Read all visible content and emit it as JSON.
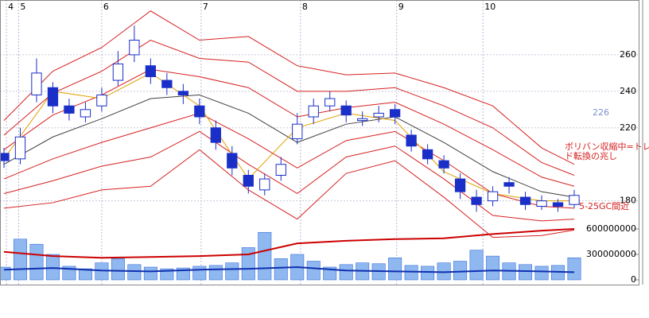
{
  "chart_data": {
    "type": "candlestick",
    "x": [
      0,
      1,
      2,
      3,
      4,
      5,
      6,
      7,
      8,
      9,
      10,
      11,
      12,
      13,
      14,
      15,
      16,
      17,
      18,
      19,
      20,
      21,
      22,
      23,
      24,
      25,
      26,
      27,
      28,
      29,
      30,
      31,
      32,
      33,
      34,
      35
    ],
    "open": [
      206,
      203,
      238,
      242,
      232,
      226,
      232,
      246,
      260,
      254,
      246,
      240,
      232,
      220,
      206,
      194,
      186,
      194,
      214,
      226,
      232,
      232,
      224,
      226,
      230,
      216,
      208,
      202,
      192,
      182,
      180,
      190,
      182,
      177,
      179,
      178
    ],
    "close": [
      202,
      215,
      250,
      232,
      228,
      230,
      238,
      255,
      268,
      248,
      242,
      238,
      226,
      212,
      198,
      188,
      192,
      200,
      222,
      232,
      236,
      227,
      225,
      228,
      226,
      210,
      203,
      198,
      185,
      178,
      185,
      188,
      178,
      180,
      177,
      183
    ],
    "high": [
      209,
      220,
      258,
      245,
      236,
      234,
      242,
      262,
      276,
      258,
      250,
      244,
      236,
      224,
      210,
      197,
      195,
      204,
      228,
      236,
      240,
      235,
      229,
      232,
      233,
      219,
      211,
      205,
      195,
      186,
      188,
      193,
      185,
      183,
      181,
      186
    ],
    "low": [
      198,
      200,
      234,
      228,
      224,
      223,
      229,
      243,
      256,
      244,
      238,
      233,
      222,
      208,
      194,
      184,
      183,
      191,
      211,
      222,
      229,
      223,
      221,
      223,
      222,
      207,
      200,
      195,
      181,
      174,
      177,
      184,
      175,
      175,
      174,
      176
    ],
    "up_color": "#ffffff",
    "down_color": "#1a2fc8",
    "xlim": [
      0,
      35
    ],
    "xticks": [
      {
        "value": 0.15,
        "label": "4"
      },
      {
        "value": 0.9,
        "label": "5"
      },
      {
        "value": 6,
        "label": "6"
      },
      {
        "value": 12.1,
        "label": "7"
      },
      {
        "value": 18.2,
        "label": "8"
      },
      {
        "value": 24.1,
        "label": "9"
      },
      {
        "value": 29.4,
        "label": "10"
      }
    ],
    "ylim": [
      135,
      290
    ],
    "yticks": [
      180,
      220,
      240,
      260
    ],
    "grid": true,
    "lines": {
      "x": [
        0,
        3,
        6,
        9,
        12,
        15,
        18,
        21,
        24,
        27,
        30,
        33,
        35
      ],
      "series": [
        {
          "color": "#404040",
          "values": [
            200,
            215,
            225,
            236,
            238,
            228,
            212,
            222,
            226,
            212,
            196,
            185,
            182
          ]
        },
        {
          "color": "#d62020",
          "values": [
            208,
            227,
            238,
            252,
            248,
            242,
            226,
            231,
            234,
            222,
            208,
            193,
            188
          ]
        },
        {
          "color": "#d62020",
          "values": [
            216,
            239,
            251,
            268,
            258,
            256,
            240,
            240,
            242,
            232,
            220,
            201,
            194
          ]
        },
        {
          "color": "#d62020",
          "values": [
            224,
            251,
            264,
            284,
            268,
            270,
            254,
            249,
            250,
            242,
            232,
            209,
            200
          ]
        },
        {
          "color": "#d62020",
          "values": [
            192,
            203,
            212,
            220,
            228,
            214,
            198,
            213,
            218,
            202,
            184,
            177,
            176
          ]
        },
        {
          "color": "#d62020",
          "values": [
            184,
            191,
            199,
            204,
            218,
            200,
            184,
            204,
            210,
            192,
            172,
            169,
            170
          ]
        },
        {
          "color": "#d62020",
          "values": [
            176,
            179,
            186,
            188,
            208,
            186,
            170,
            195,
            202,
            182,
            160,
            161,
            164
          ]
        },
        {
          "color": "#e0a000",
          "values": [
            203,
            240,
            236,
            250,
            232,
            192,
            220,
            228,
            224,
            196,
            184,
            180,
            180
          ]
        }
      ]
    },
    "volume": {
      "color": "#8fb8f0",
      "values": [
        150000000,
        480000000,
        420000000,
        300000000,
        160000000,
        130000000,
        200000000,
        250000000,
        180000000,
        150000000,
        130000000,
        140000000,
        160000000,
        170000000,
        200000000,
        380000000,
        560000000,
        250000000,
        300000000,
        220000000,
        150000000,
        180000000,
        200000000,
        190000000,
        260000000,
        170000000,
        160000000,
        200000000,
        220000000,
        350000000,
        280000000,
        200000000,
        180000000,
        160000000,
        170000000,
        260000000
      ],
      "ylim": [
        0,
        3300000000
      ],
      "yticks": [
        0,
        300000000,
        600000000
      ],
      "lines": [
        {
          "color": "#cc0000",
          "values": [
            330000000,
            280000000,
            260000000,
            270000000,
            280000000,
            300000000,
            430000000,
            460000000,
            480000000,
            490000000,
            540000000,
            580000000,
            600000000
          ]
        },
        {
          "color": "#1030b0",
          "values": [
            120000000,
            140000000,
            110000000,
            100000000,
            120000000,
            130000000,
            150000000,
            110000000,
            100000000,
            90000000,
            110000000,
            100000000,
            90000000
          ]
        }
      ]
    },
    "annotations": [
      "226",
      "ボリバン収縮中=トレン",
      "ド転換の兆し",
      "5-25GC間近"
    ]
  }
}
